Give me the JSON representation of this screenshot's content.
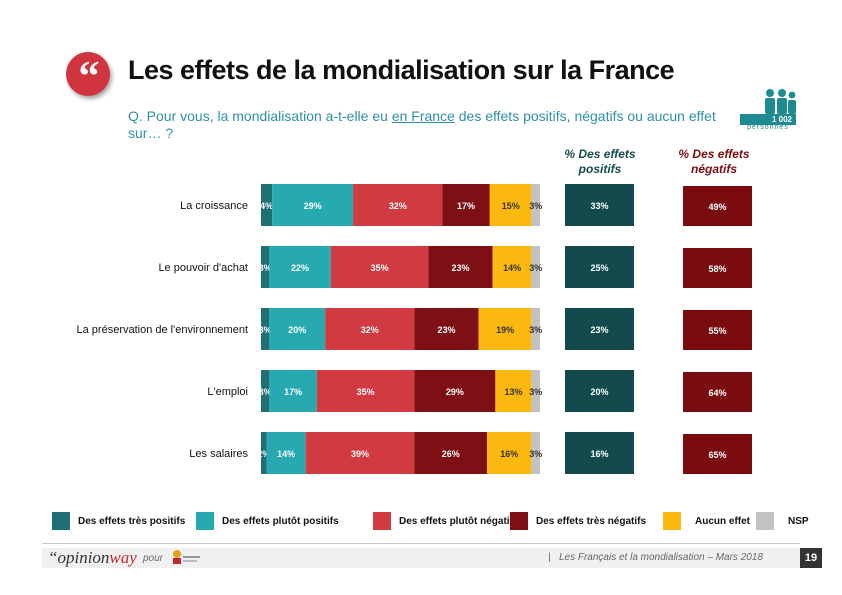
{
  "header": {
    "title": "Les effets de la mondialisation sur la France",
    "question_pre": "Q. Pour vous, la mondialisation a-t-elle eu ",
    "question_underlined": "en France",
    "question_post": " des effets positifs, négatifs ou aucun effet sur… ?",
    "quote_glyph": "“",
    "sample_size": "1 002",
    "sample_label": "personnes"
  },
  "columns": {
    "positive_label": "% Des effets positifs",
    "negative_label": "% Des effets négatifs"
  },
  "colors": {
    "tres_positifs": "#1f6f74",
    "plutot_positifs": "#27a9b0",
    "plutot_negatifs": "#d23a42",
    "tres_negatifs": "#7e0f14",
    "aucun_effet": "#fbb80f",
    "nsp": "#c2c2c2",
    "positive_total": "#124a4d",
    "negative_total": "#7a0b0f"
  },
  "chart_data": {
    "type": "bar",
    "orientation": "horizontal-stacked",
    "categories": [
      "La croissance",
      "Le pouvoir d'achat",
      "La préservation de l'environnement",
      "L'emploi",
      "Les salaires"
    ],
    "series": [
      {
        "name": "Des effets très positifs",
        "key": "tres_positifs",
        "values": [
          4,
          3,
          3,
          3,
          2
        ]
      },
      {
        "name": "Des effets plutôt positifs",
        "key": "plutot_positifs",
        "values": [
          29,
          22,
          20,
          17,
          14
        ]
      },
      {
        "name": "Des effets plutôt négatifs",
        "key": "plutot_negatifs",
        "values": [
          32,
          35,
          32,
          35,
          39
        ]
      },
      {
        "name": "Des effets très négatifs",
        "key": "tres_negatifs",
        "values": [
          17,
          23,
          23,
          29,
          26
        ]
      },
      {
        "name": "Aucun effet",
        "key": "aucun_effet",
        "values": [
          15,
          14,
          19,
          13,
          16
        ]
      },
      {
        "name": "NSP",
        "key": "nsp",
        "values": [
          3,
          3,
          3,
          3,
          3
        ]
      }
    ],
    "positive_totals": [
      33,
      25,
      23,
      20,
      16
    ],
    "negative_totals": [
      49,
      58,
      55,
      64,
      65
    ],
    "value_suffix": "%",
    "xlim": [
      0,
      100
    ]
  },
  "footer": {
    "brand_quote": "“",
    "brand_opinion": "opinion",
    "brand_way": "way",
    "pour": "pour",
    "source_text": "Les Français et la mondialisation – Mars 2018",
    "separator": "|",
    "page_number": "19"
  }
}
